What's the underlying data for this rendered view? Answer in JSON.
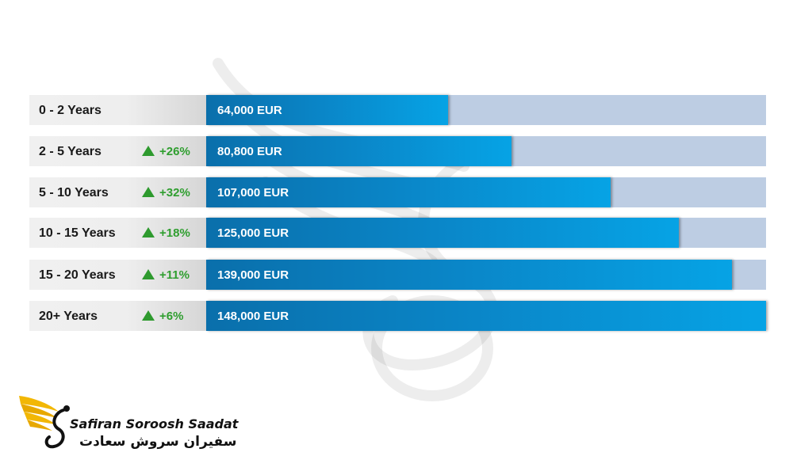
{
  "chart_data": {
    "type": "bar",
    "orientation": "horizontal",
    "categories": [
      "0 - 2 Years",
      "2 - 5 Years",
      "5 - 10 Years",
      "10 - 15 Years",
      "15 - 20 Years",
      "20+ Years"
    ],
    "values": [
      64000,
      80800,
      107000,
      125000,
      139000,
      148000
    ],
    "value_labels": [
      "64,000 EUR",
      "80,800 EUR",
      "107,000 EUR",
      "125,000 EUR",
      "139,000 EUR",
      "148,000 EUR"
    ],
    "growth_labels": [
      "",
      "+26%",
      "+32%",
      "+18%",
      "+11%",
      "+6%"
    ],
    "unit": "EUR",
    "xlim": [
      0,
      148000
    ],
    "title": "",
    "xlabel": "",
    "ylabel": "",
    "grid": false,
    "colors": {
      "bar_start": "#0a6fab",
      "bar_end": "#06a3e5",
      "track": "#bdcde3",
      "growth": "#2f9e2f"
    }
  },
  "logo": {
    "name_en": "Safiran Soroosh Saadat",
    "name_fa": "سفیران سروش سعادت",
    "icon": "golden-wing-logo-icon"
  }
}
